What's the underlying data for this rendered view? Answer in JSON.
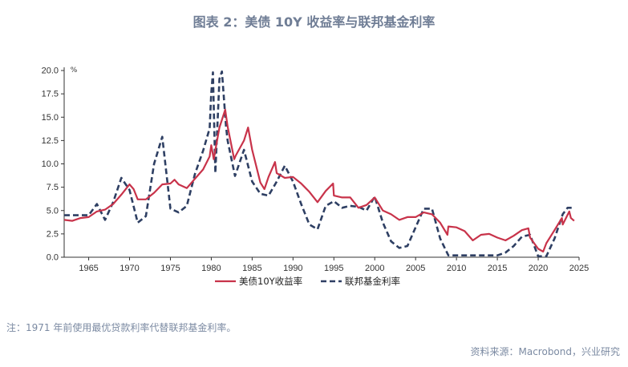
{
  "page": {
    "title": "图表 2：美债 10Y 收益率与联邦基金利率",
    "note": "注：1971 年前使用最优贷款利率代替联邦基金利率。",
    "source": "资料来源：Macrobond，兴业研究"
  },
  "chart_data": {
    "type": "line",
    "ylabel": "%",
    "xlim": [
      1962,
      2025
    ],
    "ylim": [
      0,
      20
    ],
    "x_ticks": [
      1965,
      1970,
      1975,
      1980,
      1985,
      1990,
      1995,
      2000,
      2005,
      2010,
      2015,
      2020,
      2025
    ],
    "y_ticks": [
      0.0,
      2.5,
      5.0,
      7.5,
      10.0,
      12.5,
      15.0,
      17.5,
      20.0
    ],
    "y_tick_labels": [
      "0.0",
      "2.5",
      "5.0",
      "7.5",
      "10.0",
      "12.5",
      "15.0",
      "17.5",
      "20.0"
    ],
    "grid": false,
    "legend": "bottom",
    "series": [
      {
        "name": "美债10Y收益率",
        "color": "#c8334a",
        "style": "solid",
        "points": [
          [
            1962,
            4.0
          ],
          [
            1963,
            3.9
          ],
          [
            1964,
            4.2
          ],
          [
            1965,
            4.3
          ],
          [
            1966,
            4.9
          ],
          [
            1967,
            5.1
          ],
          [
            1968,
            5.7
          ],
          [
            1969,
            6.7
          ],
          [
            1970,
            7.8
          ],
          [
            1970.5,
            7.3
          ],
          [
            1971,
            6.2
          ],
          [
            1972,
            6.2
          ],
          [
            1973,
            6.9
          ],
          [
            1974,
            7.8
          ],
          [
            1975,
            7.9
          ],
          [
            1975.5,
            8.3
          ],
          [
            1976,
            7.8
          ],
          [
            1977,
            7.4
          ],
          [
            1978,
            8.4
          ],
          [
            1979,
            9.4
          ],
          [
            1979.8,
            10.8
          ],
          [
            1980,
            12.0
          ],
          [
            1980.3,
            10.5
          ],
          [
            1981,
            13.9
          ],
          [
            1981.7,
            15.8
          ],
          [
            1982,
            14.0
          ],
          [
            1982.8,
            10.5
          ],
          [
            1983,
            10.9
          ],
          [
            1984,
            12.5
          ],
          [
            1984.5,
            13.9
          ],
          [
            1985,
            11.5
          ],
          [
            1986,
            8.0
          ],
          [
            1986.5,
            7.3
          ],
          [
            1987,
            8.6
          ],
          [
            1987.8,
            10.2
          ],
          [
            1988,
            9.0
          ],
          [
            1989,
            8.5
          ],
          [
            1990,
            8.6
          ],
          [
            1991,
            7.9
          ],
          [
            1992,
            7.0
          ],
          [
            1993,
            5.9
          ],
          [
            1994,
            7.1
          ],
          [
            1994.9,
            7.9
          ],
          [
            1995,
            6.6
          ],
          [
            1996,
            6.4
          ],
          [
            1997,
            6.4
          ],
          [
            1998,
            5.3
          ],
          [
            1999,
            5.6
          ],
          [
            2000,
            6.4
          ],
          [
            2001,
            5.0
          ],
          [
            2002,
            4.6
          ],
          [
            2003,
            4.0
          ],
          [
            2004,
            4.3
          ],
          [
            2005,
            4.3
          ],
          [
            2006,
            4.8
          ],
          [
            2007,
            4.6
          ],
          [
            2008,
            3.7
          ],
          [
            2008.9,
            2.4
          ],
          [
            2009,
            3.3
          ],
          [
            2010,
            3.2
          ],
          [
            2011,
            2.8
          ],
          [
            2012,
            1.8
          ],
          [
            2013,
            2.4
          ],
          [
            2014,
            2.5
          ],
          [
            2015,
            2.1
          ],
          [
            2016,
            1.8
          ],
          [
            2017,
            2.3
          ],
          [
            2018,
            2.9
          ],
          [
            2018.8,
            3.1
          ],
          [
            2019,
            2.1
          ],
          [
            2020,
            0.9
          ],
          [
            2020.6,
            0.6
          ],
          [
            2021,
            1.5
          ],
          [
            2022,
            2.9
          ],
          [
            2022.9,
            4.2
          ],
          [
            2023,
            3.5
          ],
          [
            2023.8,
            4.9
          ],
          [
            2024,
            4.2
          ],
          [
            2024.4,
            3.9
          ]
        ]
      },
      {
        "name": "联邦基金利率",
        "color": "#2e3f63",
        "style": "dashed",
        "points": [
          [
            1962,
            4.5
          ],
          [
            1965,
            4.5
          ],
          [
            1966,
            5.7
          ],
          [
            1967,
            4.0
          ],
          [
            1968,
            5.9
          ],
          [
            1969,
            8.5
          ],
          [
            1970,
            7.2
          ],
          [
            1971,
            3.7
          ],
          [
            1972,
            4.4
          ],
          [
            1973,
            10.0
          ],
          [
            1974,
            12.9
          ],
          [
            1975,
            5.2
          ],
          [
            1976,
            4.8
          ],
          [
            1977,
            5.5
          ],
          [
            1978,
            8.9
          ],
          [
            1979,
            11.4
          ],
          [
            1979.8,
            13.8
          ],
          [
            1980,
            17.6
          ],
          [
            1980.2,
            19.8
          ],
          [
            1980.5,
            9.0
          ],
          [
            1981,
            19.1
          ],
          [
            1981.3,
            19.9
          ],
          [
            1981.8,
            14.0
          ],
          [
            1982,
            12.5
          ],
          [
            1982.9,
            8.7
          ],
          [
            1984,
            11.5
          ],
          [
            1985,
            8.1
          ],
          [
            1986,
            6.8
          ],
          [
            1987,
            6.6
          ],
          [
            1988,
            8.1
          ],
          [
            1989,
            9.8
          ],
          [
            1990,
            8.1
          ],
          [
            1991,
            5.7
          ],
          [
            1992,
            3.5
          ],
          [
            1993,
            3.0
          ],
          [
            1994,
            5.5
          ],
          [
            1995,
            6.0
          ],
          [
            1996,
            5.3
          ],
          [
            1997,
            5.5
          ],
          [
            1998,
            5.4
          ],
          [
            1999,
            5.0
          ],
          [
            2000,
            6.5
          ],
          [
            2001,
            3.7
          ],
          [
            2002,
            1.7
          ],
          [
            2003,
            1.0
          ],
          [
            2004,
            1.2
          ],
          [
            2005,
            3.2
          ],
          [
            2006,
            5.2
          ],
          [
            2007,
            5.2
          ],
          [
            2008,
            2.0
          ],
          [
            2009,
            0.2
          ],
          [
            2015,
            0.2
          ],
          [
            2016,
            0.5
          ],
          [
            2017,
            1.2
          ],
          [
            2018,
            2.2
          ],
          [
            2019,
            2.4
          ],
          [
            2020,
            0.1
          ],
          [
            2021,
            0.1
          ],
          [
            2022,
            2.0
          ],
          [
            2022.8,
            4.1
          ],
          [
            2023,
            4.6
          ],
          [
            2023.6,
            5.3
          ],
          [
            2024,
            5.3
          ],
          [
            2024.4,
            5.3
          ]
        ]
      }
    ]
  }
}
